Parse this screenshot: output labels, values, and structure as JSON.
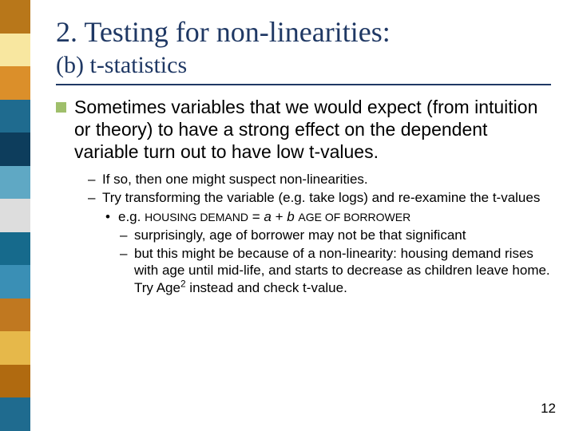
{
  "stripe_colors": [
    "#b8771a",
    "#f8e7a0",
    "#db8f2a",
    "#1f6b8f",
    "#0d3d5c",
    "#5fa8c4",
    "#dddddd",
    "#166a8c",
    "#3a8fb5",
    "#c07820",
    "#e6b84a",
    "#b06a10",
    "#1f6b8f"
  ],
  "title": "2. Testing for non-linearities:",
  "subtitle": "(b) t-statistics",
  "hr_color": "#1f3864",
  "bullet_color": "#9fbf6b",
  "main_bullet_text": "Sometimes variables that we would expect (from intuition or theory) to have a strong effect on the dependent variable turn out to have low t-values.",
  "sub1": "If so, then one might suspect non-linearities.",
  "sub2": "Try transforming the variable (e.g. take logs) and re-examine the t-values",
  "eq_prefix": "e.g. ",
  "eq_lhs": "HOUSING DEMAND",
  "eq_mid": "  = ",
  "eq_a": "a",
  "eq_plus": " + ",
  "eq_b": "b",
  "eq_sp": " ",
  "eq_rhs": "AGE OF BORROWER",
  "sub3a": "surprisingly, age of borrower may not be that significant",
  "sub3b_pre": "but this might be because of a non-linearity: housing demand rises with age until mid-life, and starts to decrease as children leave home.  Try Age",
  "sub3b_sup": "2",
  "sub3b_post": " instead and check t-value.",
  "page_number": "12",
  "title_color": "#1f3864",
  "title_fontsize": 36,
  "subtitle_fontsize": 30,
  "body_fontsize": 23,
  "sub_fontsize": 17,
  "background_color": "#ffffff"
}
